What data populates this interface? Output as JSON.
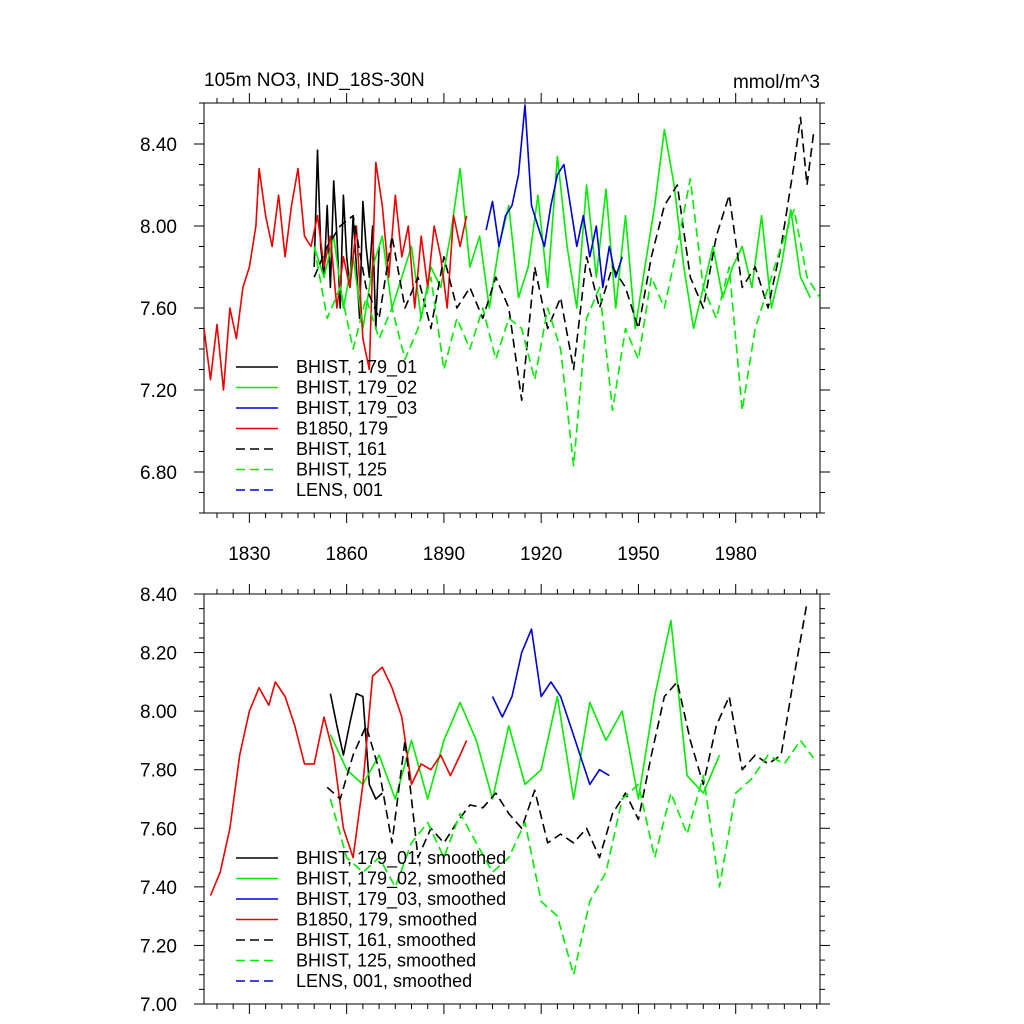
{
  "chart_data": [
    {
      "type": "line",
      "title": "105m NO3, IND_18S-30N",
      "units": "mmol/m^3",
      "xlim": [
        1816,
        2006
      ],
      "ylim": [
        6.6,
        8.6
      ],
      "xticks": [
        1830,
        1860,
        1890,
        1920,
        1950,
        1980
      ],
      "xtick_labels": [
        "1830",
        "1860",
        "1890",
        "1920",
        "1950",
        "1980"
      ],
      "yticks": [
        6.8,
        7.2,
        7.6,
        8.0,
        8.4
      ],
      "ytick_labels": [
        "6.80",
        "7.20",
        "7.60",
        "8.00",
        "8.40"
      ],
      "legend_position": "lower-left",
      "series": [
        {
          "name": "BHIST, 179_01",
          "color": "#000000",
          "dash": "solid",
          "x": [
            1850,
            1851,
            1852,
            1853,
            1854,
            1855,
            1856,
            1857,
            1858,
            1859,
            1860,
            1861,
            1862,
            1863,
            1864,
            1865,
            1866,
            1867,
            1868,
            1869,
            1870
          ],
          "values": [
            7.8,
            8.37,
            7.9,
            7.75,
            8.1,
            7.7,
            8.22,
            7.95,
            7.6,
            8.15,
            7.85,
            7.7,
            8.05,
            7.8,
            7.55,
            8.12,
            7.9,
            7.75,
            8.0,
            7.5,
            7.9
          ]
        },
        {
          "name": "BHIST, 179_02",
          "color": "#00ee00",
          "dash": "solid",
          "x": [
            1850,
            1853,
            1856,
            1859,
            1862,
            1865,
            1868,
            1871,
            1874,
            1877,
            1880,
            1883,
            1886,
            1889,
            1892,
            1895,
            1898,
            1901,
            1904,
            1907,
            1910,
            1913,
            1916,
            1919,
            1922,
            1925,
            1928,
            1931,
            1934,
            1937,
            1940,
            1943,
            1946,
            1949,
            1952,
            1955,
            1958,
            1961,
            1964,
            1967,
            1970,
            1973,
            1976,
            1979,
            1982,
            1985,
            1988,
            1991,
            1994,
            1997,
            2000,
            2003
          ],
          "values": [
            7.9,
            7.75,
            7.95,
            7.6,
            7.85,
            7.5,
            7.8,
            7.95,
            7.6,
            7.75,
            7.9,
            7.55,
            7.8,
            7.7,
            7.95,
            8.28,
            7.8,
            7.95,
            7.6,
            7.9,
            8.1,
            7.65,
            7.8,
            8.15,
            7.7,
            8.34,
            7.9,
            7.6,
            8.2,
            7.75,
            8.18,
            7.6,
            8.05,
            7.5,
            7.8,
            8.1,
            8.47,
            8.2,
            7.8,
            7.5,
            7.7,
            7.9,
            7.65,
            7.8,
            7.9,
            7.7,
            8.05,
            7.6,
            7.8,
            8.08,
            7.75,
            7.65
          ]
        },
        {
          "name": "BHIST, 179_03",
          "color": "#0000dd",
          "dash": "solid",
          "x": [
            1903,
            1905,
            1907,
            1909,
            1911,
            1913,
            1915,
            1917,
            1919,
            1921,
            1923,
            1925,
            1927,
            1929,
            1931,
            1933,
            1935,
            1937,
            1939,
            1941,
            1943,
            1945
          ],
          "values": [
            7.98,
            8.12,
            7.9,
            8.05,
            8.1,
            8.25,
            8.59,
            8.1,
            8.0,
            7.9,
            8.1,
            8.25,
            8.3,
            8.1,
            7.9,
            8.05,
            7.85,
            8.0,
            7.7,
            7.9,
            7.75,
            7.85
          ]
        },
        {
          "name": "B1850, 179",
          "color": "#ee0000",
          "dash": "solid",
          "x": [
            1816,
            1818,
            1820,
            1822,
            1824,
            1826,
            1828,
            1830,
            1832,
            1833,
            1835,
            1837,
            1839,
            1841,
            1843,
            1845,
            1847,
            1849,
            1851,
            1853,
            1855,
            1857,
            1859,
            1861,
            1863,
            1865,
            1867,
            1869,
            1871,
            1873,
            1875,
            1877,
            1879,
            1881,
            1883,
            1885,
            1887,
            1889,
            1891,
            1893,
            1895,
            1897
          ],
          "values": [
            7.5,
            7.25,
            7.52,
            7.2,
            7.6,
            7.45,
            7.7,
            7.8,
            8.0,
            8.28,
            8.05,
            7.9,
            8.15,
            7.85,
            8.1,
            8.28,
            7.95,
            7.9,
            8.05,
            7.8,
            7.95,
            7.6,
            7.85,
            7.7,
            8.0,
            7.45,
            7.3,
            8.31,
            8.1,
            7.75,
            8.15,
            7.85,
            8.0,
            7.6,
            7.95,
            7.7,
            8.0,
            7.85,
            7.6,
            8.05,
            7.9,
            8.05
          ]
        },
        {
          "name": "BHIST, 161",
          "color": "#000000",
          "dash": "dashed",
          "x": [
            1850,
            1854,
            1858,
            1862,
            1866,
            1870,
            1874,
            1878,
            1882,
            1886,
            1890,
            1894,
            1898,
            1902,
            1906,
            1910,
            1914,
            1918,
            1922,
            1926,
            1930,
            1934,
            1938,
            1942,
            1946,
            1950,
            1954,
            1958,
            1962,
            1966,
            1970,
            1974,
            1978,
            1982,
            1986,
            1990,
            1994,
            1998,
            2000,
            2002,
            2004
          ],
          "values": [
            7.75,
            7.9,
            8.0,
            8.05,
            7.7,
            7.55,
            7.95,
            7.6,
            7.75,
            7.5,
            7.85,
            7.6,
            7.7,
            7.55,
            7.75,
            7.6,
            7.15,
            7.8,
            7.5,
            7.65,
            7.3,
            7.85,
            7.6,
            7.8,
            7.7,
            7.5,
            7.85,
            8.1,
            8.2,
            7.75,
            7.6,
            7.95,
            8.15,
            7.7,
            7.8,
            7.6,
            7.9,
            8.3,
            8.53,
            8.2,
            8.45
          ]
        },
        {
          "name": "BHIST, 125",
          "color": "#00ee00",
          "dash": "dashed",
          "x": [
            1850,
            1854,
            1858,
            1862,
            1866,
            1870,
            1874,
            1878,
            1882,
            1886,
            1890,
            1894,
            1898,
            1902,
            1906,
            1910,
            1914,
            1918,
            1922,
            1926,
            1930,
            1934,
            1938,
            1942,
            1946,
            1950,
            1954,
            1958,
            1962,
            1966,
            1970,
            1974,
            1978,
            1982,
            1986,
            1990,
            1994,
            1998,
            2002,
            2006
          ],
          "values": [
            7.9,
            7.55,
            7.7,
            7.4,
            7.65,
            7.45,
            7.6,
            7.35,
            7.5,
            7.75,
            7.3,
            7.55,
            7.4,
            7.6,
            7.35,
            7.55,
            7.5,
            7.25,
            7.6,
            7.4,
            6.83,
            7.55,
            7.7,
            7.1,
            7.5,
            7.35,
            7.75,
            7.6,
            7.9,
            8.23,
            7.7,
            7.55,
            7.8,
            7.1,
            7.5,
            7.7,
            7.9,
            8.08,
            7.75,
            7.65
          ]
        },
        {
          "name": "LENS, 001",
          "color": "#0000dd",
          "dash": "dashed",
          "x": [],
          "values": []
        }
      ]
    },
    {
      "type": "line",
      "title": "",
      "xlim": [
        1816,
        2006
      ],
      "ylim": [
        7.0,
        8.4
      ],
      "xticks": [
        1830,
        1860,
        1890,
        1920,
        1950,
        1980
      ],
      "yticks": [
        7.0,
        7.2,
        7.4,
        7.6,
        7.8,
        8.0,
        8.2,
        8.4
      ],
      "ytick_labels": [
        "7.00",
        "7.20",
        "7.40",
        "7.60",
        "7.80",
        "8.00",
        "8.20",
        "8.40"
      ],
      "legend_position": "lower-left",
      "series": [
        {
          "name": "BHIST, 179_01, smoothed",
          "color": "#000000",
          "dash": "solid",
          "x": [
            1855,
            1857,
            1859,
            1861,
            1863,
            1865,
            1867,
            1869,
            1871
          ],
          "values": [
            8.06,
            7.95,
            7.85,
            7.96,
            8.06,
            8.05,
            7.75,
            7.7,
            7.72
          ]
        },
        {
          "name": "BHIST, 179_02, smoothed",
          "color": "#00ee00",
          "dash": "solid",
          "x": [
            1855,
            1860,
            1865,
            1870,
            1875,
            1880,
            1885,
            1890,
            1895,
            1900,
            1905,
            1910,
            1915,
            1920,
            1925,
            1930,
            1935,
            1940,
            1945,
            1950,
            1955,
            1960,
            1965,
            1970,
            1975
          ],
          "values": [
            7.92,
            7.8,
            7.75,
            7.85,
            7.7,
            7.9,
            7.7,
            7.9,
            8.03,
            7.9,
            7.7,
            7.95,
            7.75,
            7.8,
            8.05,
            7.7,
            8.03,
            7.9,
            8.0,
            7.7,
            8.05,
            8.31,
            7.78,
            7.72,
            7.85
          ]
        },
        {
          "name": "BHIST, 179_03, smoothed",
          "color": "#0000dd",
          "dash": "solid",
          "x": [
            1905,
            1908,
            1911,
            1914,
            1917,
            1920,
            1923,
            1926,
            1929,
            1932,
            1935,
            1938,
            1941
          ],
          "values": [
            8.05,
            7.98,
            8.05,
            8.2,
            8.28,
            8.05,
            8.1,
            8.05,
            7.95,
            7.85,
            7.75,
            7.8,
            7.78
          ]
        },
        {
          "name": "B1850, 179, smoothed",
          "color": "#ee0000",
          "dash": "solid",
          "x": [
            1818,
            1821,
            1824,
            1827,
            1830,
            1833,
            1836,
            1838,
            1841,
            1844,
            1847,
            1850,
            1853,
            1856,
            1859,
            1862,
            1865,
            1868,
            1871,
            1874,
            1877,
            1880,
            1883,
            1886,
            1889,
            1892,
            1895,
            1897
          ],
          "values": [
            7.37,
            7.45,
            7.6,
            7.85,
            8.0,
            8.08,
            8.02,
            8.1,
            8.05,
            7.95,
            7.82,
            7.82,
            7.98,
            7.85,
            7.6,
            7.5,
            7.75,
            8.12,
            8.15,
            8.08,
            7.98,
            7.75,
            7.82,
            7.8,
            7.85,
            7.78,
            7.85,
            7.9
          ]
        },
        {
          "name": "BHIST, 161, smoothed",
          "color": "#000000",
          "dash": "dashed",
          "x": [
            1854,
            1858,
            1862,
            1866,
            1870,
            1874,
            1878,
            1882,
            1886,
            1890,
            1894,
            1898,
            1902,
            1906,
            1910,
            1914,
            1918,
            1922,
            1926,
            1930,
            1934,
            1938,
            1942,
            1946,
            1950,
            1954,
            1958,
            1962,
            1966,
            1970,
            1974,
            1978,
            1982,
            1986,
            1990,
            1994,
            1998,
            2002
          ],
          "values": [
            7.74,
            7.7,
            7.85,
            7.95,
            7.8,
            7.55,
            7.9,
            7.5,
            7.6,
            7.55,
            7.62,
            7.68,
            7.67,
            7.72,
            7.65,
            7.6,
            7.73,
            7.55,
            7.58,
            7.55,
            7.6,
            7.5,
            7.65,
            7.72,
            7.63,
            7.85,
            8.05,
            8.1,
            7.9,
            7.75,
            7.95,
            8.05,
            7.8,
            7.85,
            7.82,
            7.85,
            8.12,
            8.37
          ]
        },
        {
          "name": "BHIST, 125, smoothed",
          "color": "#00ee00",
          "dash": "dashed",
          "x": [
            1855,
            1860,
            1865,
            1870,
            1875,
            1880,
            1885,
            1890,
            1895,
            1900,
            1905,
            1910,
            1915,
            1920,
            1925,
            1930,
            1935,
            1940,
            1945,
            1950,
            1955,
            1960,
            1965,
            1970,
            1975,
            1980,
            1985,
            1990,
            1995,
            2000,
            2004
          ],
          "values": [
            7.7,
            7.5,
            7.45,
            7.5,
            7.4,
            7.55,
            7.62,
            7.5,
            7.65,
            7.55,
            7.45,
            7.5,
            7.62,
            7.35,
            7.3,
            7.1,
            7.35,
            7.45,
            7.7,
            7.75,
            7.5,
            7.72,
            7.58,
            7.78,
            7.4,
            7.72,
            7.77,
            7.85,
            7.82,
            7.9,
            7.84
          ]
        },
        {
          "name": "LENS, 001, smoothed",
          "color": "#0000dd",
          "dash": "dashed",
          "x": [],
          "values": []
        }
      ]
    }
  ]
}
